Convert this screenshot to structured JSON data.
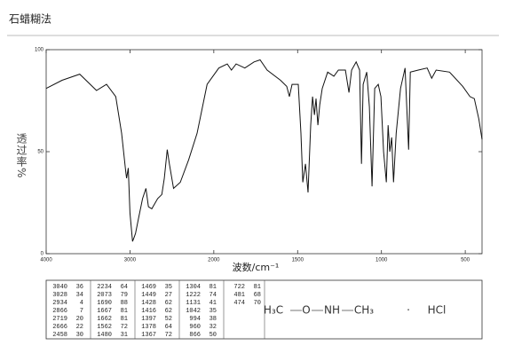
{
  "header": {
    "title": "石蜡糊法"
  },
  "chart_data": {
    "type": "line",
    "x_label": "波数/cm⁻¹",
    "y_label": "透过率%",
    "xlim": [
      4000,
      400
    ],
    "x_scale_change": 2000,
    "x_scale_factor": 2,
    "xticks": [
      4000,
      3000,
      2000,
      1500,
      1000,
      500
    ],
    "ylim": [
      0,
      100
    ],
    "yticks": [
      0,
      50,
      100
    ],
    "color": "#111111",
    "x": [
      4000,
      3810,
      3600,
      3400,
      3280,
      3170,
      3100,
      3050,
      3040,
      3020,
      3000,
      2970,
      2950,
      2934,
      2900,
      2850,
      2810,
      2780,
      2740,
      2670,
      2620,
      2590,
      2555,
      2530,
      2480,
      2400,
      2300,
      2200,
      2080,
      1970,
      1920,
      1895,
      1867,
      1815,
      1760,
      1724,
      1682,
      1602,
      1565,
      1549,
      1533,
      1496,
      1480,
      1469,
      1453,
      1438,
      1422,
      1411,
      1400,
      1390,
      1379,
      1368,
      1353,
      1321,
      1284,
      1257,
      1215,
      1194,
      1178,
      1151,
      1130,
      1119,
      1109,
      1088,
      1072,
      1056,
      1040,
      1019,
      1003,
      987,
      971,
      960,
      950,
      939,
      928,
      912,
      886,
      859,
      838,
      828,
      780,
      727,
      700,
      674,
      594,
      515,
      472,
      446,
      419,
      400
    ],
    "values": [
      81,
      85,
      88,
      80,
      83,
      77,
      59,
      40,
      37,
      42,
      20,
      6,
      8,
      10,
      17,
      27,
      32,
      23,
      22,
      27,
      29,
      37,
      51,
      44,
      32,
      35,
      46,
      59,
      83,
      91,
      93,
      90,
      93,
      91,
      94,
      95,
      90,
      85,
      82,
      77,
      83,
      83,
      59,
      35,
      44,
      30,
      63,
      77,
      68,
      76,
      63,
      73,
      81,
      89,
      87,
      90,
      90,
      79,
      90,
      94,
      90,
      44,
      83,
      89,
      72,
      33,
      81,
      83,
      77,
      50,
      35,
      63,
      50,
      57,
      35,
      59,
      81,
      91,
      51,
      89,
      90,
      91,
      86,
      90,
      89,
      82,
      77,
      76,
      66,
      56
    ],
    "peak_table": [
      [
        [
          3040,
          36
        ],
        [
          3028,
          34
        ],
        [
          2934,
          4
        ],
        [
          2866,
          7
        ],
        [
          2719,
          20
        ],
        [
          2666,
          22
        ],
        [
          2458,
          30
        ]
      ],
      [
        [
          2234,
          64
        ],
        [
          2073,
          79
        ],
        [
          1690,
          88
        ],
        [
          1667,
          81
        ],
        [
          1662,
          81
        ],
        [
          1562,
          72
        ],
        [
          1480,
          31
        ]
      ],
      [
        [
          1469,
          35
        ],
        [
          1449,
          27
        ],
        [
          1428,
          62
        ],
        [
          1416,
          62
        ],
        [
          1397,
          52
        ],
        [
          1378,
          64
        ],
        [
          1367,
          72
        ]
      ],
      [
        [
          1304,
          81
        ],
        [
          1222,
          74
        ],
        [
          1131,
          41
        ],
        [
          1042,
          35
        ],
        [
          994,
          38
        ],
        [
          960,
          32
        ],
        [
          866,
          50
        ]
      ],
      [
        [
          722,
          81
        ],
        [
          481,
          68
        ],
        [
          474,
          70
        ]
      ]
    ],
    "structure": [
      "H₃C",
      "O",
      "NH",
      "CH₃",
      "·",
      "HCl"
    ]
  }
}
